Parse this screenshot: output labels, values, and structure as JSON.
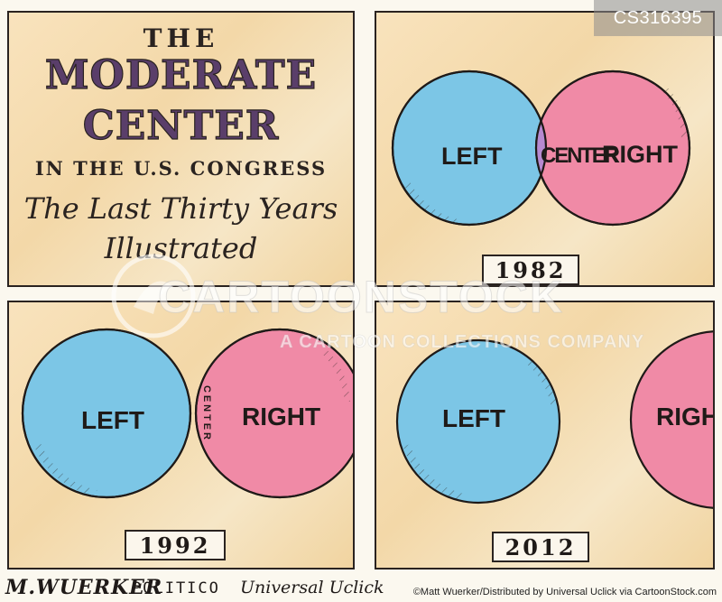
{
  "watermark": {
    "id": "CS316395",
    "brand": "CARTOONSTOCK",
    "tagline": "A CARTOON COLLECTIONS COMPANY"
  },
  "title_panel": {
    "line1": "THE",
    "line2": "MODERATE",
    "line3": "CENTER",
    "line4": "IN THE U.S. CONGRESS",
    "line5": "The Last Thirty Years",
    "line6": "Illustrated"
  },
  "panels": [
    {
      "year": "1982",
      "left": "LEFT",
      "center": "CENTER",
      "right": "RIGHT"
    },
    {
      "year": "1992",
      "left": "LEFT",
      "center": "CENTER",
      "right": "RIGHT"
    },
    {
      "year": "2012",
      "left": "LEFT",
      "right": "RIGH"
    }
  ],
  "footer": {
    "artist": "M.WUERKER",
    "publication": "POLITICO",
    "syndicate": "Universal Uclick",
    "credit": "©Matt Wuerker/Distributed by Universal Uclick via CartoonStock.com"
  },
  "colors": {
    "left_circle": "#7cc6e6",
    "right_circle": "#f08aa6",
    "center_overlap": "#b78ad0",
    "ink": "#1f1a18"
  }
}
